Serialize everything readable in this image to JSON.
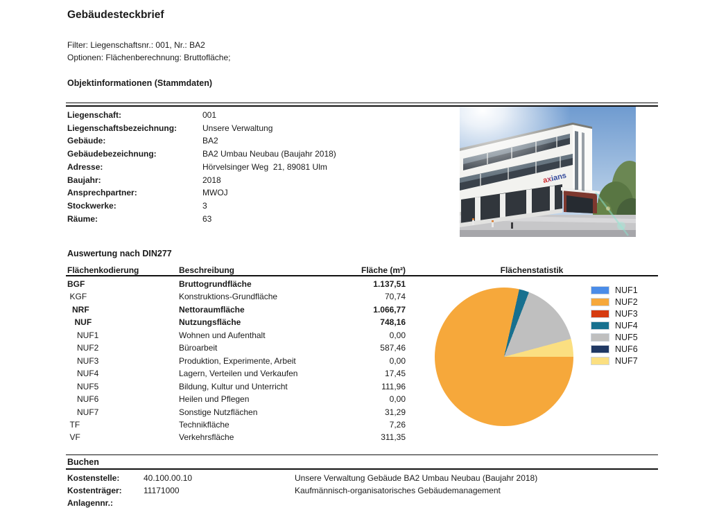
{
  "header": {
    "title": "Gebäudesteckbrief",
    "filter_line": "Filter: Liegenschaftsnr.: 001, Nr.: BA2",
    "options_line": "Optionen: Flächenberechnung: Bruttofläche;"
  },
  "objektinfo": {
    "section_title": "Objektinformationen (Stammdaten)",
    "rows": [
      {
        "label": "Liegenschaft:",
        "value": "001"
      },
      {
        "label": "Liegenschaftsbezeichnung:",
        "value": "Unsere Verwaltung"
      },
      {
        "label": "Gebäude:",
        "value": "BA2"
      },
      {
        "label": "Gebäudebezeichnung:",
        "value": "BA2 Umbau Neubau (Baujahr 2018)"
      },
      {
        "label": "Adresse:",
        "value": "Hörvelsinger Weg  21, 89081 Ulm"
      },
      {
        "label": "Baujahr:",
        "value": "2018"
      },
      {
        "label": "Ansprechpartner:",
        "value": "MWOJ"
      },
      {
        "label": "Stockwerke:",
        "value": "3"
      },
      {
        "label": "Räume:",
        "value": "63"
      }
    ],
    "photo_logo": {
      "part1": "a",
      "part2": "x",
      "part3": "ians"
    }
  },
  "din277": {
    "section_title": "Auswertung nach DIN277",
    "columns": [
      "Flächenkodierung",
      "Beschreibung",
      "Fläche (m²)",
      "Flächenstatistik"
    ],
    "rows": [
      {
        "code": "BGF",
        "desc": "Bruttogrundfläche",
        "value": "1.137,51",
        "bold": true,
        "indent": 0
      },
      {
        "code": "KGF",
        "desc": "Konstruktions-Grundfläche",
        "value": "70,74",
        "bold": false,
        "indent": 1
      },
      {
        "code": "NRF",
        "desc": "Nettoraumfläche",
        "value": "1.066,77",
        "bold": true,
        "indent": 2
      },
      {
        "code": "NUF",
        "desc": "Nutzungsfläche",
        "value": "748,16",
        "bold": true,
        "indent": 3
      },
      {
        "code": "NUF1",
        "desc": "Wohnen und Aufenthalt",
        "value": "0,00",
        "bold": false,
        "indent": 4
      },
      {
        "code": "NUF2",
        "desc": "Büroarbeit",
        "value": "587,46",
        "bold": false,
        "indent": 4
      },
      {
        "code": "NUF3",
        "desc": "Produktion, Experimente, Arbeit",
        "value": "0,00",
        "bold": false,
        "indent": 4
      },
      {
        "code": "NUF4",
        "desc": "Lagern, Verteilen und Verkaufen",
        "value": "17,45",
        "bold": false,
        "indent": 4
      },
      {
        "code": "NUF5",
        "desc": "Bildung, Kultur und Unterricht",
        "value": "111,96",
        "bold": false,
        "indent": 4
      },
      {
        "code": "NUF6",
        "desc": "Heilen und Pflegen",
        "value": "0,00",
        "bold": false,
        "indent": 4
      },
      {
        "code": "NUF7",
        "desc": "Sonstige Nutzflächen",
        "value": "31,29",
        "bold": false,
        "indent": 4
      },
      {
        "code": "TF",
        "desc": "Technikfläche",
        "value": "7,26",
        "bold": false,
        "indent": 1
      },
      {
        "code": "VF",
        "desc": "Verkehrsfläche",
        "value": "311,35",
        "bold": false,
        "indent": 1
      }
    ]
  },
  "chart_data": {
    "type": "pie",
    "title": "Flächenstatistik",
    "categories": [
      "NUF1",
      "NUF2",
      "NUF3",
      "NUF4",
      "NUF5",
      "NUF6",
      "NUF7"
    ],
    "values": [
      0,
      587.46,
      0,
      17.45,
      111.96,
      0,
      31.29
    ],
    "colors": [
      "#4a8ce8",
      "#f6a83b",
      "#d63b10",
      "#17708f",
      "#bfbfbf",
      "#1f3864",
      "#fbdf81"
    ],
    "legend_position": "right",
    "start_angle_deg": 90,
    "direction": "clockwise"
  },
  "buchen": {
    "section_title": "Buchen",
    "rows": [
      {
        "label": "Kostenstelle:",
        "value": "40.100.00.10",
        "desc": "Unsere Verwaltung Gebäude BA2 Umbau Neubau (Baujahr 2018)"
      },
      {
        "label": "Kostenträger:",
        "value": "11171000",
        "desc": "Kaufmännisch-organisatorisches Gebäudemanagement"
      },
      {
        "label": "Anlagennr.:",
        "value": "",
        "desc": ""
      }
    ]
  }
}
